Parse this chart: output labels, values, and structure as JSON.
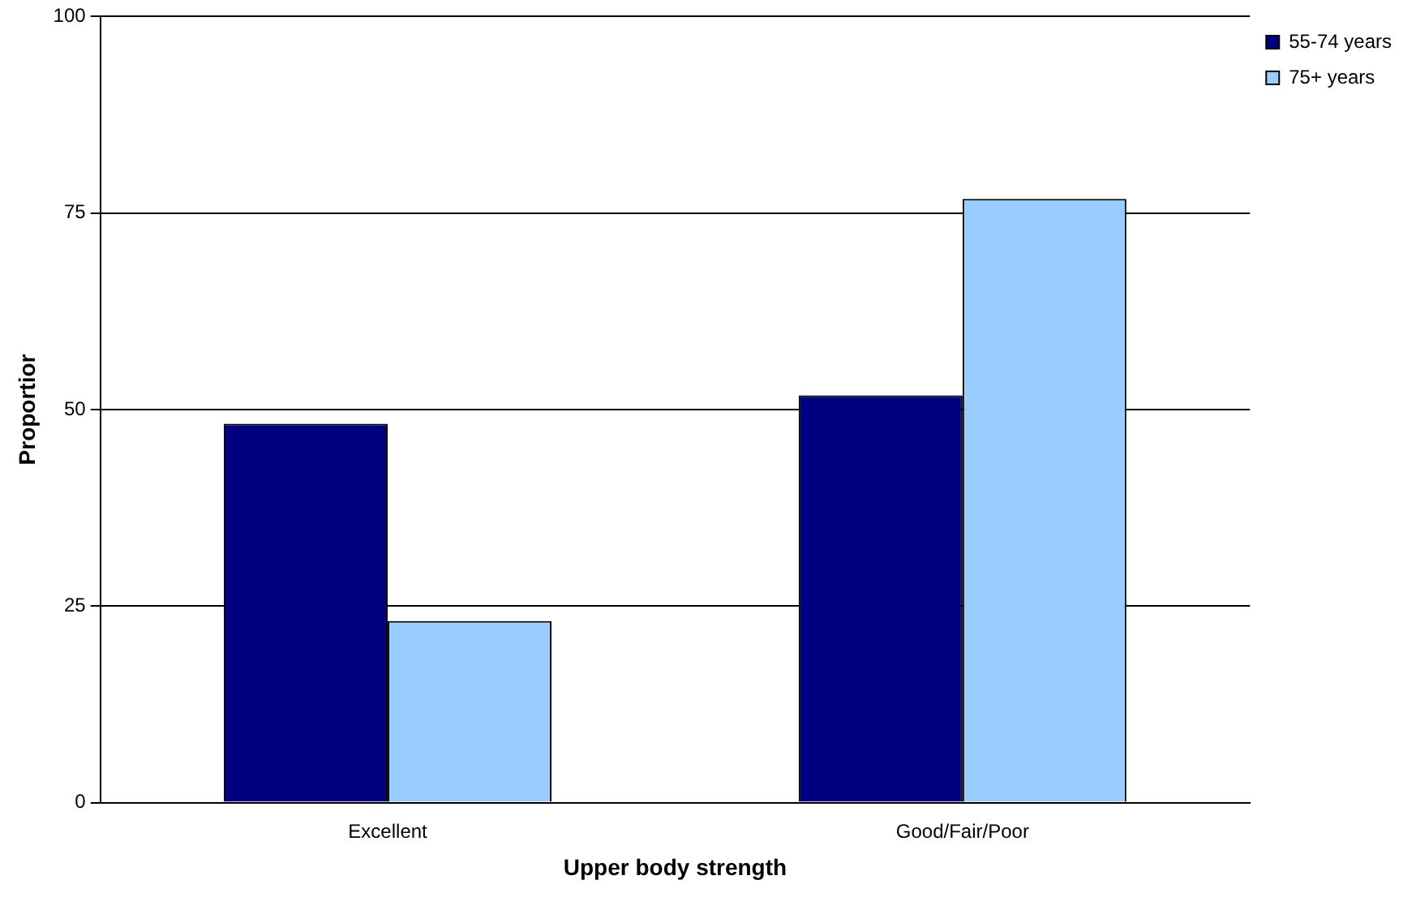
{
  "chart_data": {
    "type": "bar",
    "xlabel": "Upper body strength",
    "ylabel": "Proportior",
    "categories": [
      "Excellent",
      "Good/Fair/Poor"
    ],
    "series": [
      {
        "name": "55-74 years",
        "color": "#000080",
        "values": [
          48.2,
          51.8
        ]
      },
      {
        "name": "75+ years",
        "color": "#99ccff",
        "values": [
          23.1,
          76.8
        ]
      }
    ],
    "ylim": [
      0,
      100
    ],
    "yticks": [
      0,
      25,
      50,
      75,
      100
    ],
    "grid": "y",
    "legend": "right"
  }
}
